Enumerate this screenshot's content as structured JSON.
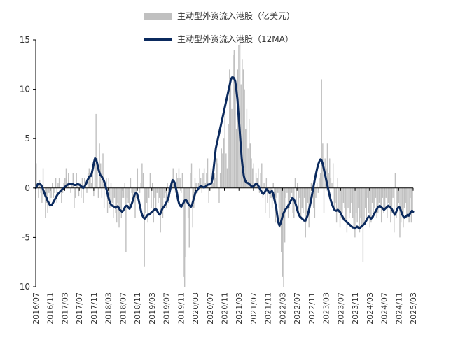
{
  "chart_data": {
    "type": "bar+line",
    "title": "",
    "xlabel": "",
    "ylabel": "",
    "ylim": [
      -10,
      15
    ],
    "yticks": [
      -10,
      -5,
      0,
      5,
      10,
      15
    ],
    "x_tick_labels": [
      "2016/07",
      "2016/11",
      "2017/03",
      "2017/07",
      "2017/11",
      "2018/03",
      "2018/07",
      "2018/11",
      "2019/03",
      "2019/07",
      "2019/11",
      "2020/03",
      "2020/07",
      "2020/11",
      "2021/03",
      "2021/07",
      "2021/11",
      "2022/03",
      "2022/07",
      "2022/11",
      "2023/03",
      "2023/07",
      "2023/11",
      "2024/03",
      "2024/07",
      "2024/11",
      "2025/03"
    ],
    "legend": [
      "主动型外资流入港股（亿美元）",
      "主动型外资流入港股（12MA）"
    ],
    "legend_placement": "top",
    "grid": false,
    "colors": {
      "bar": "#c0c0c0",
      "line": "#0b2a5e"
    },
    "series": [
      {
        "name": "主动型外资流入港股（亿美元）",
        "type": "bar",
        "values": [
          2.5,
          0.5,
          -1.0,
          0.8,
          -0.5,
          -1.5,
          2.0,
          0.0,
          -3.0,
          -1.5,
          -2.5,
          -0.5,
          -2.0,
          -1.0,
          0.5,
          -1.0,
          -0.5,
          1.0,
          -1.5,
          0.5,
          1.0,
          0.0,
          -1.5,
          -0.5,
          0.5,
          1.0,
          2.0,
          0.5,
          1.5,
          0.0,
          -0.5,
          0.5,
          1.5,
          -2.0,
          -1.0,
          1.5,
          0.5,
          -0.8,
          0.5,
          -1.0,
          1.0,
          -1.5,
          1.0,
          0.5,
          -0.5,
          1.5,
          2.0,
          1.0,
          0.5,
          2.0,
          -0.8,
          2.5,
          7.5,
          3.0,
          -1.0,
          4.5,
          2.5,
          -1.0,
          3.5,
          -2.0,
          0.5,
          1.0,
          -2.5,
          1.0,
          -2.0,
          0.5,
          -1.5,
          -3.0,
          -1.0,
          -2.5,
          -3.5,
          -1.5,
          -4.0,
          -2.0,
          -3.0,
          -1.0,
          -1.0,
          0.5,
          -6.5,
          -1.0,
          -1.5,
          -2.0,
          1.0,
          -0.5,
          -1.5,
          -0.5,
          -3.0,
          -1.0,
          2.0,
          0.0,
          -0.5,
          0.5,
          2.5,
          1.5,
          -8.0,
          -2.5,
          -1.5,
          -3.5,
          -1.0,
          1.5,
          -2.0,
          0.5,
          -3.5,
          -1.0,
          -2.0,
          -0.5,
          -1.5,
          -1.0,
          -4.5,
          -2.5,
          -3.0,
          -1.0,
          -0.5,
          -2.0,
          0.5,
          -1.5,
          -1.0,
          0.5,
          1.0,
          2.0,
          0.5,
          -0.5,
          1.5,
          1.0,
          2.0,
          1.0,
          -0.5,
          1.5,
          -9.0,
          -10.0,
          -7.0,
          -1.5,
          -3.0,
          -6.0,
          1.5,
          2.5,
          -4.0,
          -2.0,
          1.0,
          0.5,
          -0.5,
          0.5,
          2.0,
          1.0,
          -0.5,
          1.5,
          2.0,
          0.5,
          1.5,
          3.0,
          -1.5,
          0.0,
          2.0,
          1.0,
          0.5,
          1.5,
          1.0,
          3.0,
          2.5,
          -1.5,
          1.5,
          4.0,
          3.5,
          5.0,
          8.0,
          3.5,
          2.0,
          6.5,
          12.0,
          10.5,
          8.0,
          13.5,
          14.0,
          10.5,
          6.0,
          12.0,
          14.5,
          15.0,
          10.5,
          13.0,
          12.0,
          10.0,
          6.0,
          8.0,
          4.0,
          7.0,
          4.5,
          3.0,
          2.0,
          2.5,
          0.5,
          1.5,
          1.0,
          2.0,
          -0.5,
          1.5,
          2.5,
          -1.0,
          0.5,
          -2.5,
          1.0,
          -1.5,
          0.0,
          -3.0,
          -1.0,
          -2.0,
          0.5,
          -1.5,
          -3.5,
          -1.0,
          -0.5,
          -2.0,
          -4.0,
          -6.5,
          -9.0,
          -10.0,
          -5.5,
          -1.0,
          -0.5,
          -3.0,
          -2.0,
          -1.0,
          -0.5,
          -2.5,
          -3.0,
          1.0,
          -1.5,
          0.5,
          -2.5,
          -1.0,
          -3.0,
          -2.0,
          -2.5,
          -1.0,
          -5.0,
          -3.5,
          -1.5,
          -4.0,
          -2.0,
          0.5,
          -1.0,
          -2.0,
          -3.0,
          -1.0,
          0.5,
          -0.5,
          1.0,
          1.5,
          11.0,
          4.5,
          -2.5,
          3.0,
          2.0,
          4.5,
          1.5,
          3.0,
          1.0,
          0.5,
          2.5,
          -2.0,
          -1.5,
          -3.5,
          1.0,
          -2.5,
          -4.0,
          -3.0,
          -2.5,
          -1.5,
          -2.0,
          -3.5,
          -4.5,
          -2.0,
          -3.0,
          -2.5,
          -1.5,
          -3.0,
          -4.0,
          -5.0,
          -2.5,
          -3.5,
          -2.0,
          -4.5,
          -3.0,
          -4.0,
          -7.5,
          -3.5,
          -2.0,
          -3.0,
          -1.0,
          -2.5,
          -4.0,
          -3.5,
          -1.5,
          -3.0,
          -2.0,
          -1.0,
          -3.0,
          -2.5,
          -1.5,
          -2.0,
          -3.5,
          -1.0,
          -2.5,
          -2.0,
          -1.0,
          -3.0,
          -1.5,
          -2.0,
          -3.5,
          -2.5,
          -1.0,
          -4.5,
          1.5,
          -3.0,
          -2.0,
          -1.5,
          -5.0,
          -3.5,
          -2.5,
          -4.0,
          -2.0,
          -1.5,
          -3.0,
          -2.5,
          -3.5,
          -1.0,
          -3.5,
          -2.5
        ]
      },
      {
        "name": "主动型外资流入港股（12MA）",
        "type": "line",
        "values": [
          0.0,
          0.2,
          0.4,
          0.45,
          0.4,
          0.3,
          0.1,
          -0.2,
          -0.5,
          -0.8,
          -1.0,
          -1.3,
          -1.5,
          -1.7,
          -1.75,
          -1.7,
          -1.5,
          -1.3,
          -1.1,
          -0.9,
          -0.7,
          -0.55,
          -0.45,
          -0.3,
          -0.2,
          -0.1,
          0.0,
          0.1,
          0.2,
          0.3,
          0.35,
          0.4,
          0.45,
          0.4,
          0.4,
          0.35,
          0.3,
          0.3,
          0.35,
          0.4,
          0.35,
          0.3,
          0.2,
          0.1,
          0.0,
          0.1,
          0.3,
          0.5,
          0.8,
          1.0,
          1.2,
          1.2,
          1.5,
          2.0,
          2.6,
          3.0,
          2.9,
          2.5,
          2.0,
          1.6,
          1.3,
          1.2,
          1.0,
          0.8,
          0.5,
          0.1,
          -0.3,
          -0.8,
          -1.2,
          -1.5,
          -1.7,
          -1.8,
          -1.85,
          -1.9,
          -2.0,
          -1.9,
          -1.85,
          -2.0,
          -2.2,
          -2.3,
          -2.4,
          -2.3,
          -2.1,
          -1.9,
          -1.8,
          -1.8,
          -2.0,
          -2.1,
          -1.9,
          -1.6,
          -1.3,
          -0.9,
          -0.6,
          -0.5,
          -0.6,
          -1.0,
          -1.5,
          -2.0,
          -2.5,
          -2.8,
          -3.0,
          -3.1,
          -3.0,
          -2.8,
          -2.7,
          -2.7,
          -2.6,
          -2.5,
          -2.4,
          -2.3,
          -2.2,
          -2.1,
          -2.2,
          -2.4,
          -2.6,
          -2.7,
          -2.5,
          -2.2,
          -2.0,
          -1.9,
          -1.7,
          -1.5,
          -1.3,
          -1.0,
          -0.5,
          0.0,
          0.5,
          0.8,
          0.7,
          0.5,
          0.0,
          -0.5,
          -1.2,
          -1.6,
          -1.8,
          -1.9,
          -1.7,
          -1.5,
          -1.3,
          -1.2,
          -1.3,
          -1.5,
          -1.7,
          -1.8,
          -1.9,
          -1.7,
          -1.3,
          -0.9,
          -0.5,
          -0.3,
          -0.2,
          0.0,
          0.1,
          0.2,
          0.15,
          0.1,
          0.05,
          0.1,
          0.2,
          0.3,
          0.35,
          0.35,
          0.4,
          0.5,
          1.0,
          2.0,
          3.0,
          4.0,
          4.5,
          5.0,
          5.5,
          6.0,
          6.5,
          7.0,
          7.5,
          8.0,
          8.5,
          9.0,
          9.5,
          10.0,
          10.5,
          11.0,
          11.2,
          11.2,
          11.1,
          10.8,
          10.0,
          9.0,
          7.5,
          6.0,
          4.5,
          3.0,
          2.0,
          1.2,
          0.8,
          0.6,
          0.5,
          0.5,
          0.4,
          0.3,
          0.2,
          0.1,
          0.2,
          0.3,
          0.4,
          0.4,
          0.3,
          0.1,
          -0.1,
          -0.3,
          -0.5,
          -0.6,
          -0.5,
          -0.3,
          -0.1,
          -0.2,
          -0.4,
          -0.5,
          -0.4,
          -0.3,
          -0.5,
          -1.0,
          -1.5,
          -2.0,
          -2.8,
          -3.5,
          -3.8,
          -3.6,
          -3.2,
          -2.8,
          -2.5,
          -2.3,
          -2.1,
          -2.0,
          -1.8,
          -1.6,
          -1.4,
          -1.2,
          -1.0,
          -1.1,
          -1.3,
          -1.6,
          -2.0,
          -2.4,
          -2.7,
          -2.9,
          -3.0,
          -3.1,
          -3.2,
          -3.3,
          -3.3,
          -3.1,
          -2.8,
          -2.4,
          -1.9,
          -1.4,
          -0.8,
          -0.2,
          0.4,
          1.0,
          1.5,
          2.0,
          2.4,
          2.7,
          2.9,
          2.8,
          2.5,
          2.0,
          1.5,
          1.0,
          0.5,
          0.0,
          -0.5,
          -1.0,
          -1.4,
          -1.7,
          -2.0,
          -2.2,
          -2.3,
          -2.3,
          -2.2,
          -2.3,
          -2.4,
          -2.6,
          -2.8,
          -3.0,
          -3.2,
          -3.3,
          -3.4,
          -3.5,
          -3.6,
          -3.7,
          -3.8,
          -3.9,
          -4.0,
          -4.0,
          -4.1,
          -4.0,
          -3.9,
          -4.0,
          -4.1,
          -4.0,
          -3.9,
          -3.8,
          -3.7,
          -3.6,
          -3.4,
          -3.2,
          -3.0,
          -2.9,
          -3.0,
          -3.1,
          -3.0,
          -2.8,
          -2.6,
          -2.4,
          -2.2,
          -2.0,
          -1.9,
          -1.8,
          -1.9,
          -2.0,
          -2.1,
          -2.2,
          -2.1,
          -2.0,
          -1.9,
          -1.8,
          -1.9,
          -2.0,
          -2.1,
          -2.3,
          -2.5,
          -2.7,
          -2.5,
          -2.2,
          -2.0,
          -1.9,
          -2.1,
          -2.4,
          -2.7,
          -2.9,
          -3.0,
          -2.9,
          -2.8,
          -2.7,
          -2.8,
          -2.6,
          -2.4,
          -2.3,
          -2.4
        ]
      }
    ]
  }
}
